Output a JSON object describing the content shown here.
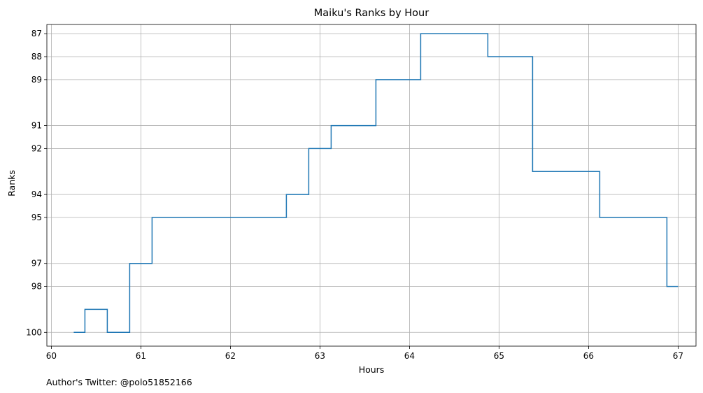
{
  "footer": {
    "author": "Author's Twitter: @polo51852166"
  },
  "chart_data": {
    "type": "line",
    "step": "post",
    "title": "Maiku's Ranks by Hour",
    "xlabel": "Hours",
    "ylabel": "Ranks",
    "xlim": [
      59.95,
      67.2
    ],
    "ylim": [
      100.6,
      86.6
    ],
    "y_inverted": true,
    "grid": true,
    "x_ticks": [
      60,
      61,
      62,
      63,
      64,
      65,
      66,
      67
    ],
    "y_ticks": [
      87,
      88,
      89,
      91,
      92,
      94,
      95,
      97,
      98,
      100
    ],
    "series": [
      {
        "name": "",
        "color": "#1f77b4",
        "x": [
          60.25,
          60.375,
          60.625,
          60.875,
          61.125,
          62.625,
          62.875,
          63.125,
          63.625,
          64.125,
          64.875,
          65.375,
          66.125,
          66.875,
          67.0
        ],
        "y": [
          100,
          99,
          100,
          97,
          95,
          94,
          92,
          91,
          89,
          87,
          88,
          93,
          95,
          98,
          98
        ]
      }
    ]
  }
}
